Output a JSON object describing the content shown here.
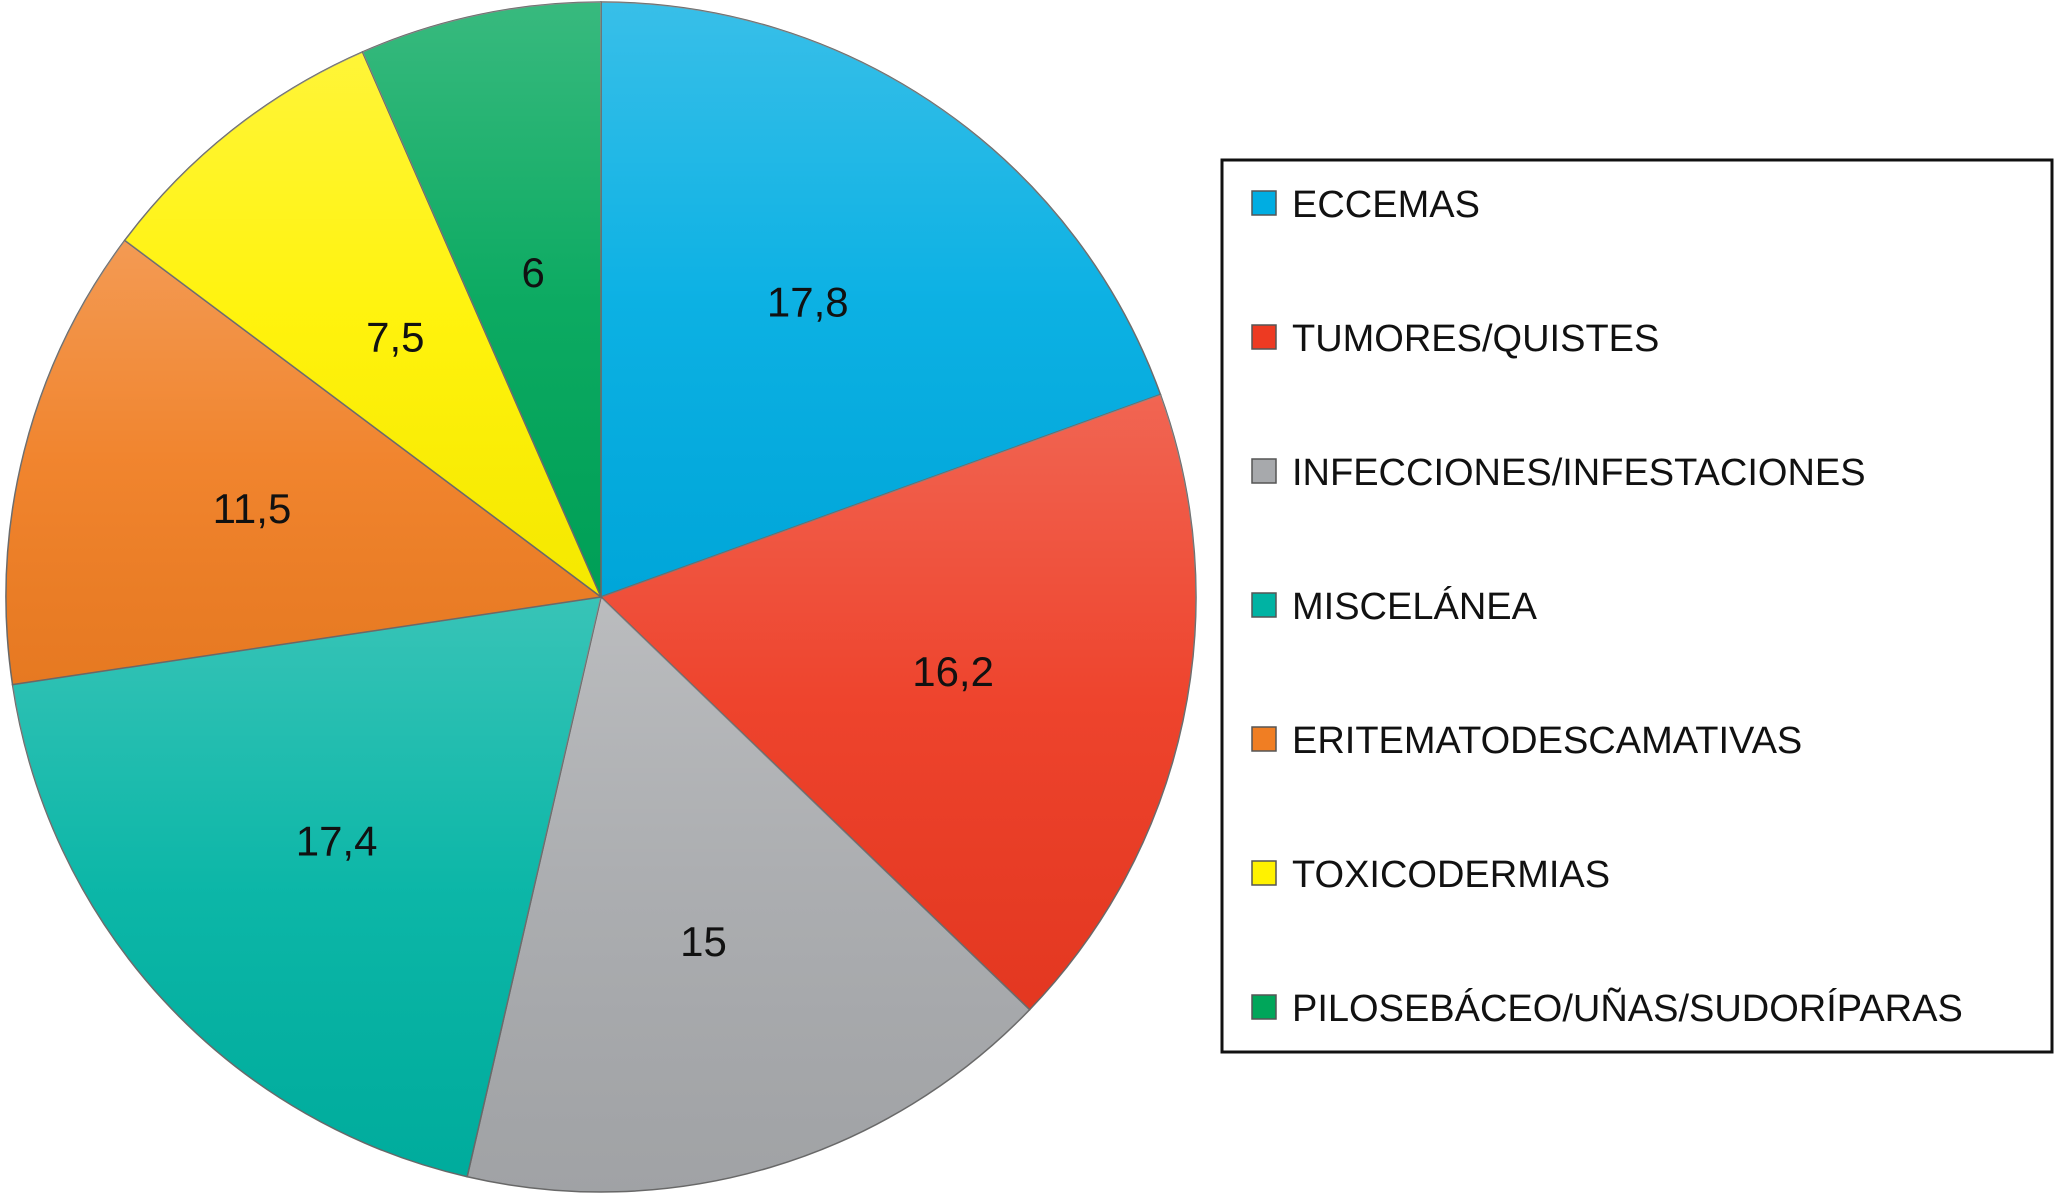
{
  "chart_data": {
    "type": "pie",
    "title": "",
    "unit": "",
    "slices": [
      {
        "label": "ECCEMAS",
        "value": 17.8,
        "value_label": "17,8",
        "color": "#00ade2"
      },
      {
        "label": "TUMORES/QUISTES",
        "value": 16.2,
        "value_label": "16,2",
        "color": "#ed3a22"
      },
      {
        "label": "INFECCIONES/INFESTACIONES",
        "value": 15,
        "value_label": "15",
        "color": "#a7a9ac"
      },
      {
        "label": "MISCELÁNEA",
        "value": 17.4,
        "value_label": "17,4",
        "color": "#00b3a3"
      },
      {
        "label": "ERITEMATODESCAMATIVAS",
        "value": 11.5,
        "value_label": "11,5",
        "color": "#f07e23"
      },
      {
        "label": "TOXICODERMIAS",
        "value": 7.5,
        "value_label": "7,5",
        "color": "#fff200"
      },
      {
        "label": "PILOSEBÁCEO/UÑAS/SUDORÍPARAS",
        "value": 6,
        "value_label": "6",
        "color": "#00a65a"
      }
    ],
    "start_angle": "12 o'clock",
    "direction": "clockwise",
    "legend_position": "right"
  }
}
